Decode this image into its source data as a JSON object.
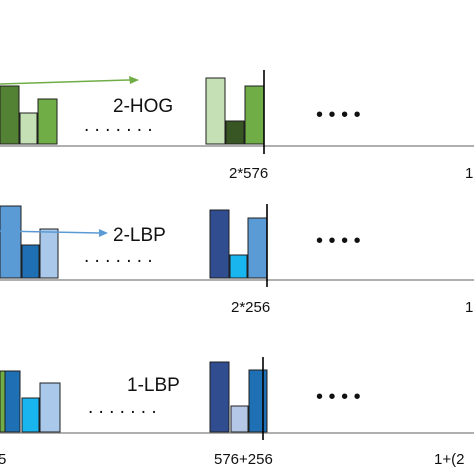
{
  "colors": {
    "axis": "#7f7f7f",
    "tick": "#000000",
    "bar_stroke": "#1f1f1f",
    "green_arrow": "#70ad47",
    "blue_arrow": "#5b9bd5"
  },
  "rows": [
    {
      "id": "row-2-hog",
      "label": "2-HOG",
      "dots": ". . . . . . .",
      "ellipsis": "•  •  •  •",
      "ticks": [
        "2*576",
        "1"
      ],
      "left_group": [
        "#548235",
        "#c5e0b4",
        "#70ad47"
      ],
      "right_group": [
        "#c5e0b4",
        "#375623",
        "#70ad47"
      ],
      "arrow_color": "green_arrow"
    },
    {
      "id": "row-2-lbp",
      "label": "2-LBP",
      "dots": ". . . . . . .",
      "ellipsis": "•  •  •  •",
      "ticks": [
        "2*256",
        "1"
      ],
      "left_group": [
        "#5b9bd5",
        "#1f6fb5",
        "#a9c8ea"
      ],
      "right_group": [
        "#2f4d8f",
        "#19b5ef",
        "#5b9bd5"
      ],
      "arrow_color": "blue_arrow"
    },
    {
      "id": "row-1-lbp",
      "label": "1-LBP",
      "dots": ". . . . . . .",
      "ellipsis": "•  •  •  •",
      "ticks": [
        "576+256",
        "1+(2"
      ],
      "left_group": [
        "#1f6fb5",
        "#19b5ef",
        "#a9c8ea"
      ],
      "right_group": [
        "#2f4d8f",
        "#b4c7e7",
        "#1f6fb5"
      ],
      "arrow_color": null
    }
  ]
}
